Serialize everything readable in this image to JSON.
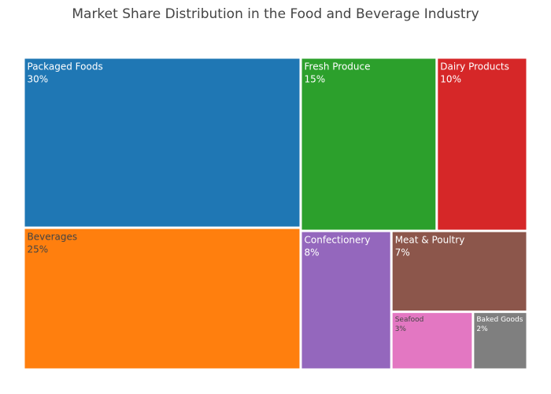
{
  "chart_data": {
    "type": "treemap",
    "title": "Market Share Distribution in the Food and Beverage Industry",
    "unit": "%",
    "items": [
      {
        "name": "Packaged Foods",
        "value": 30,
        "label": "30%",
        "color": "#1f77b4",
        "text_color": "#ffffff"
      },
      {
        "name": "Beverages",
        "value": 25,
        "label": "25%",
        "color": "#ff7f0e",
        "text_color": "#444444"
      },
      {
        "name": "Fresh Produce",
        "value": 15,
        "label": "15%",
        "color": "#2ca02c",
        "text_color": "#ffffff"
      },
      {
        "name": "Dairy Products",
        "value": 10,
        "label": "10%",
        "color": "#d62728",
        "text_color": "#ffffff"
      },
      {
        "name": "Confectionery",
        "value": 8,
        "label": "8%",
        "color": "#9467bd",
        "text_color": "#ffffff"
      },
      {
        "name": "Meat & Poultry",
        "value": 7,
        "label": "7%",
        "color": "#8c564b",
        "text_color": "#ffffff"
      },
      {
        "name": "Seafood",
        "value": 3,
        "label": "3%",
        "color": "#e377c2",
        "text_color": "#444444"
      },
      {
        "name": "Baked Goods",
        "value": 2,
        "label": "2%",
        "color": "#7f7f7f",
        "text_color": "#ffffff"
      }
    ]
  }
}
